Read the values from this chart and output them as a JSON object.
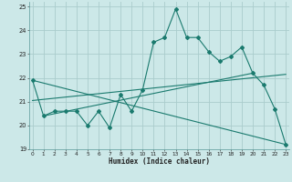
{
  "xlabel": "Humidex (Indice chaleur)",
  "background_color": "#cce8e8",
  "grid_color": "#aacccc",
  "line_color": "#1a7a6e",
  "x_values": [
    0,
    1,
    2,
    3,
    4,
    5,
    6,
    7,
    8,
    9,
    10,
    11,
    12,
    13,
    14,
    15,
    16,
    17,
    18,
    19,
    20,
    21,
    22,
    23
  ],
  "line1": [
    21.9,
    20.4,
    20.6,
    20.6,
    20.6,
    20.0,
    20.6,
    19.9,
    21.3,
    20.6,
    21.5,
    23.5,
    23.7,
    24.9,
    23.7,
    23.7,
    23.1,
    22.7,
    22.9,
    23.3,
    22.2,
    21.7,
    20.7,
    19.2
  ],
  "line2": [
    [
      0,
      21.9
    ],
    [
      23,
      19.2
    ]
  ],
  "line3": [
    [
      0,
      21.05
    ],
    [
      23,
      22.15
    ]
  ],
  "line4": [
    [
      1,
      20.4
    ],
    [
      20,
      22.2
    ]
  ],
  "ylim": [
    19,
    25.2
  ],
  "xlim": [
    -0.3,
    23.3
  ],
  "yticks": [
    19,
    20,
    21,
    22,
    23,
    24,
    25
  ],
  "xticks": [
    0,
    1,
    2,
    3,
    4,
    5,
    6,
    7,
    8,
    9,
    10,
    11,
    12,
    13,
    14,
    15,
    16,
    17,
    18,
    19,
    20,
    21,
    22,
    23
  ]
}
